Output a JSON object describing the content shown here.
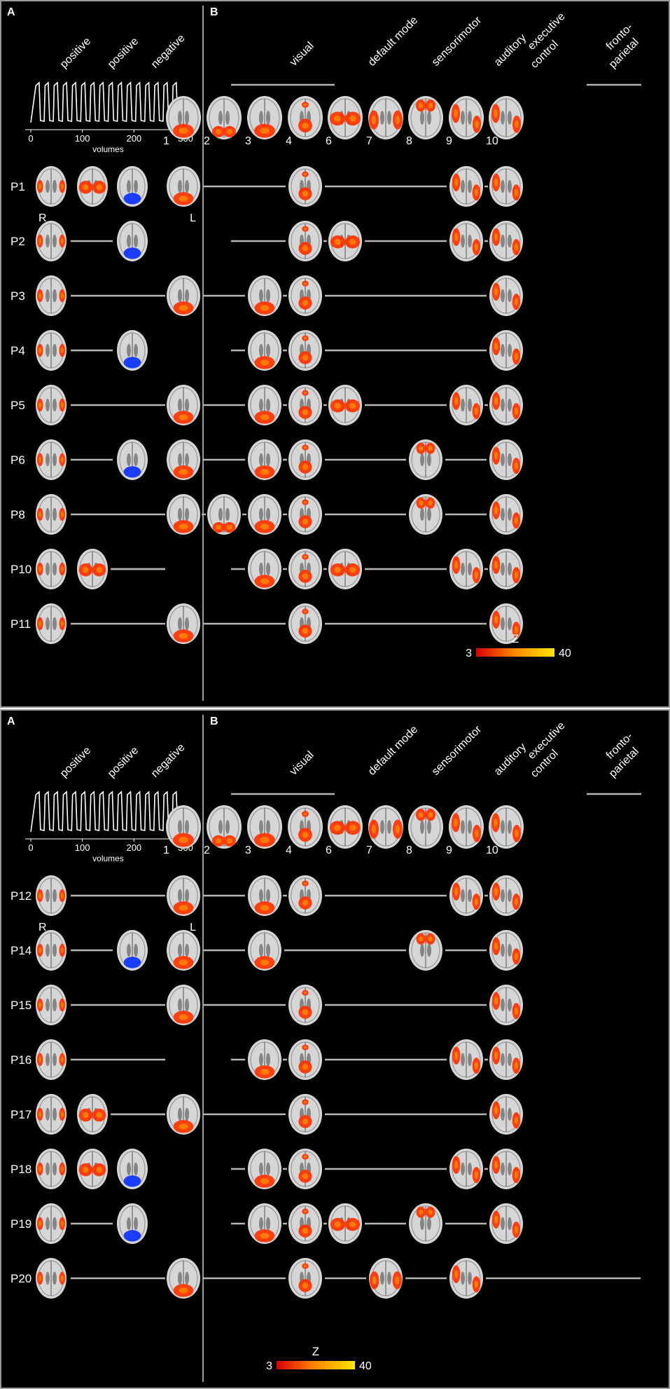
{
  "colors": {
    "background": "#000000",
    "frame": "#9a9a9a",
    "text": "#ffffff",
    "brain_light": "#d6d6d6",
    "brain_dark": "#6a6a6a",
    "activation_pos": "#ff3300",
    "activation_pos_hot": "#ff8a00",
    "activation_neg": "#1a3dff",
    "colorbar_low": "#d80000",
    "colorbar_high": "#ffe600",
    "connector": "#b4b4b4"
  },
  "panel_a_letter": "A",
  "panel_b_letter": "B",
  "design_labels": [
    "positive",
    "positive",
    "negative"
  ],
  "design_axis": {
    "ticks": [
      "0",
      "100",
      "200",
      "300"
    ],
    "label": "volumes",
    "range": [
      0,
      300
    ]
  },
  "side_labels": {
    "right": "R",
    "left": "L"
  },
  "networks": {
    "visual": "visual",
    "default_mode": "default mode",
    "sensorimotor": "sensorimotor",
    "auditory": "auditory",
    "executive_control": "executive\ncontrol",
    "fronto_parietal": "fronto-\nparietal"
  },
  "template_numbers": [
    "1",
    "2",
    "3",
    "4",
    "6",
    "7",
    "8",
    "9",
    "10"
  ],
  "colorbar": {
    "label": "Z",
    "min": "3",
    "max": "40"
  },
  "figures": [
    {
      "participants": [
        {
          "id": "P1",
          "a": [
            1,
            1,
            2
          ],
          "b": [
            1,
            0,
            0,
            1,
            0,
            0,
            0,
            1,
            1
          ]
        },
        {
          "id": "P2",
          "a": [
            1,
            0,
            2
          ],
          "b": [
            0,
            0,
            0,
            1,
            1,
            0,
            0,
            1,
            1
          ]
        },
        {
          "id": "P3",
          "a": [
            1,
            0,
            0
          ],
          "b": [
            1,
            0,
            1,
            1,
            0,
            0,
            0,
            0,
            1
          ]
        },
        {
          "id": "P4",
          "a": [
            1,
            0,
            2
          ],
          "b": [
            0,
            0,
            1,
            1,
            0,
            0,
            0,
            0,
            1
          ]
        },
        {
          "id": "P5",
          "a": [
            1,
            0,
            0
          ],
          "b": [
            1,
            0,
            1,
            1,
            1,
            0,
            0,
            1,
            1
          ]
        },
        {
          "id": "P6",
          "a": [
            1,
            0,
            2
          ],
          "b": [
            1,
            0,
            1,
            1,
            0,
            0,
            1,
            0,
            1
          ]
        },
        {
          "id": "P8",
          "a": [
            1,
            0,
            0
          ],
          "b": [
            1,
            1,
            1,
            1,
            0,
            0,
            1,
            0,
            1
          ]
        },
        {
          "id": "P10",
          "a": [
            1,
            1,
            0
          ],
          "b": [
            0,
            0,
            1,
            1,
            1,
            0,
            0,
            1,
            1
          ]
        },
        {
          "id": "P11",
          "a": [
            1,
            0,
            0
          ],
          "b": [
            1,
            0,
            0,
            1,
            0,
            0,
            0,
            0,
            1
          ]
        }
      ]
    },
    {
      "participants": [
        {
          "id": "P12",
          "a": [
            1,
            0,
            0
          ],
          "b": [
            1,
            0,
            1,
            1,
            0,
            0,
            0,
            1,
            1
          ]
        },
        {
          "id": "P14",
          "a": [
            1,
            0,
            2
          ],
          "b": [
            1,
            0,
            1,
            0,
            0,
            0,
            1,
            0,
            1
          ]
        },
        {
          "id": "P15",
          "a": [
            1,
            0,
            0
          ],
          "b": [
            1,
            0,
            0,
            1,
            0,
            0,
            0,
            0,
            1
          ]
        },
        {
          "id": "P16",
          "a": [
            1,
            0,
            0
          ],
          "b": [
            0,
            0,
            1,
            1,
            0,
            0,
            0,
            1,
            1
          ]
        },
        {
          "id": "P17",
          "a": [
            1,
            1,
            0
          ],
          "b": [
            1,
            0,
            0,
            1,
            0,
            0,
            0,
            0,
            1
          ]
        },
        {
          "id": "P18",
          "a": [
            1,
            1,
            2
          ],
          "b": [
            0,
            0,
            1,
            1,
            0,
            0,
            0,
            1,
            1
          ]
        },
        {
          "id": "P19",
          "a": [
            1,
            0,
            2
          ],
          "b": [
            0,
            0,
            1,
            1,
            1,
            0,
            1,
            0,
            1
          ]
        },
        {
          "id": "P20",
          "a": [
            1,
            0,
            0
          ],
          "b": [
            1,
            0,
            0,
            1,
            0,
            1,
            0,
            1,
            0
          ]
        }
      ]
    }
  ]
}
